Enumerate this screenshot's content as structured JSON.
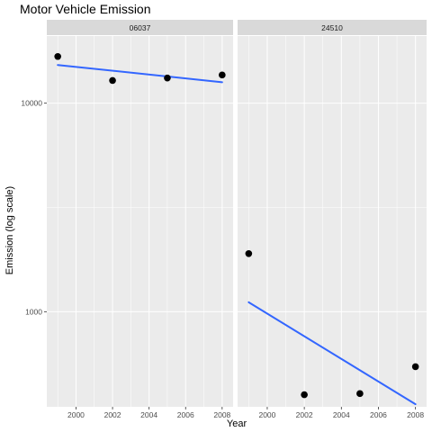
{
  "chart_data": {
    "type": "scatter",
    "title": "Motor Vehicle Emission",
    "xlabel": "Year",
    "ylabel": "Emission (log scale)",
    "y_scale": "log10",
    "ylim": [
      350,
      21000
    ],
    "xlim": [
      1998.4,
      2008.6
    ],
    "x_ticks": [
      2000,
      2002,
      2004,
      2006,
      2008
    ],
    "y_ticks": [
      1000,
      10000
    ],
    "y_tick_labels": [
      "1000",
      "10000"
    ],
    "x_tick_labels": [
      "2000",
      "2002",
      "2004",
      "2006",
      "2008"
    ],
    "grid": true,
    "legend": "none",
    "colors": {
      "panel_bg": "#ebebeb",
      "strip_bg": "#d9d9d9",
      "grid": "#ffffff",
      "points": "#000000",
      "fit_line": "#3366ff"
    },
    "panels": [
      {
        "label": "06037",
        "points": [
          {
            "x": 1999,
            "y": 16750
          },
          {
            "x": 2002,
            "y": 12850
          },
          {
            "x": 2005,
            "y": 13200
          },
          {
            "x": 2008,
            "y": 13650
          }
        ],
        "fit_line": [
          {
            "x": 1999,
            "y": 15250
          },
          {
            "x": 2008,
            "y": 12600
          }
        ]
      },
      {
        "label": "24510",
        "points": [
          {
            "x": 1999,
            "y": 1900
          },
          {
            "x": 2002,
            "y": 400
          },
          {
            "x": 2005,
            "y": 405
          },
          {
            "x": 2008,
            "y": 545
          }
        ],
        "fit_line": [
          {
            "x": 1999,
            "y": 1110
          },
          {
            "x": 2008,
            "y": 360
          }
        ]
      }
    ]
  }
}
